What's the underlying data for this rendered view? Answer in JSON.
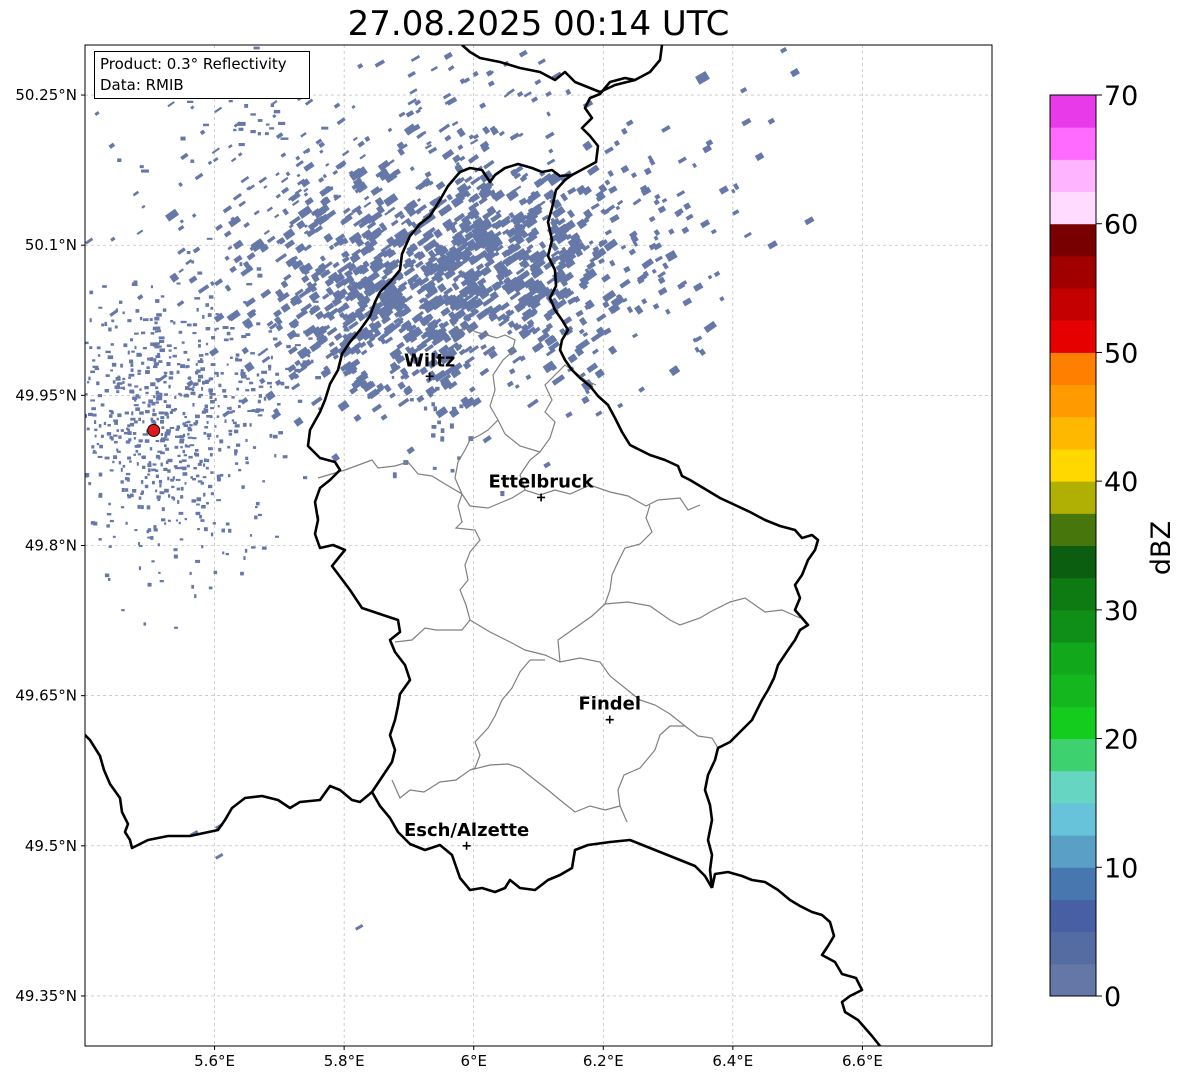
{
  "title": "27.08.2025 00:14 UTC",
  "info": {
    "product": "Product: 0.3° Reflectivity",
    "data": "Data: RMIB"
  },
  "colors": {
    "echo": "#6578a8",
    "border": "#000000",
    "canton_border": "#808080",
    "radar_site": "#e31a1c",
    "grid": "#b0b0b0"
  },
  "map": {
    "lon_range": [
      5.4,
      6.8
    ],
    "lat_range": [
      49.3,
      50.3
    ],
    "lon_ticks": [
      5.6,
      5.8,
      6.0,
      6.2,
      6.4,
      6.6
    ],
    "lon_tick_labels": [
      "5.6°E",
      "5.8°E",
      "6°E",
      "6.2°E",
      "6.4°E",
      "6.6°E"
    ],
    "lat_ticks": [
      50.25,
      50.1,
      49.95,
      49.8,
      49.65,
      49.5,
      49.35
    ],
    "lat_tick_labels": [
      "50.25°N",
      "50.1°N",
      "49.95°N",
      "49.8°N",
      "49.65°N",
      "49.5°N",
      "49.35°N"
    ],
    "grid": true,
    "radar_site": {
      "lon": 5.506,
      "lat": 49.915
    },
    "cities": [
      {
        "name": "Wiltz",
        "lon": 5.932,
        "lat": 49.969
      },
      {
        "name": "Ettelbruck",
        "lon": 6.104,
        "lat": 49.848
      },
      {
        "name": "Findel",
        "lon": 6.21,
        "lat": 49.626
      },
      {
        "name": "Esch/Alzette",
        "lon": 5.989,
        "lat": 49.5
      }
    ]
  },
  "colorbar": {
    "label": "dBZ",
    "ticks": [
      0,
      10,
      20,
      30,
      40,
      50,
      60,
      70
    ],
    "tick_labels": [
      "0",
      "10",
      "20",
      "30",
      "40",
      "50",
      "60",
      "70"
    ],
    "min": 0,
    "max": 70,
    "colors": [
      "#6577a6",
      "#546ca1",
      "#4860a3",
      "#4877b0",
      "#5a9fc6",
      "#66c3da",
      "#66d6c3",
      "#3dd26f",
      "#14cc1e",
      "#14b81e",
      "#12a81c",
      "#108f18",
      "#0d7a12",
      "#0b5d10",
      "#46760c",
      "#b0b004",
      "#ffd800",
      "#ffb800",
      "#ff9a00",
      "#ff7f00",
      "#e60000",
      "#c40000",
      "#a00000",
      "#780000",
      "#ffdcff",
      "#ffb4ff",
      "#ff6aff",
      "#e83ae8"
    ]
  }
}
